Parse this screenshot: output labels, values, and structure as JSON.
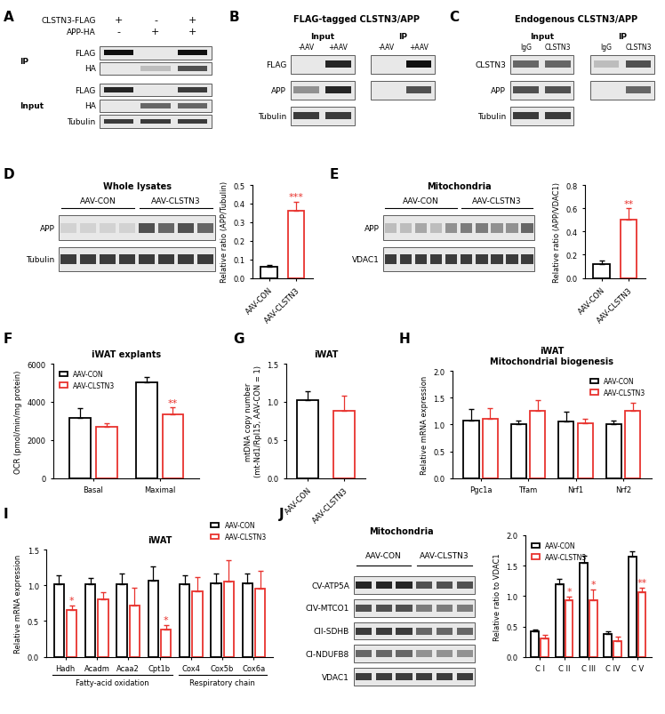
{
  "blots": [
    {
      "panel": "A",
      "type": "blot",
      "header_rows": [
        {
          "label": "CLSTN3-FLAG",
          "marks": [
            "+",
            "-",
            "+"
          ]
        },
        {
          "label": "APP-HA",
          "marks": [
            "-",
            "+",
            "+"
          ]
        }
      ],
      "sections": [
        {
          "label": "IP",
          "rows": [
            {
              "label": "FLAG",
              "bands": [
                1.0,
                0.0,
                1.0
              ]
            },
            {
              "label": "HA",
              "bands": [
                0.0,
                0.2,
                0.7
              ]
            }
          ]
        },
        {
          "label": "Input",
          "rows": [
            {
              "label": "FLAG",
              "bands": [
                0.9,
                0.0,
                0.8
              ]
            },
            {
              "label": "HA",
              "bands": [
                0.0,
                0.6,
                0.6
              ]
            },
            {
              "label": "Tubulin",
              "bands": [
                0.8,
                0.8,
                0.8
              ]
            }
          ]
        }
      ]
    },
    {
      "panel": "B",
      "type": "blot",
      "title": "FLAG-tagged CLSTN3/APP",
      "columns": [
        {
          "label": "Input",
          "lanes": [
            "-AAV",
            "+AAV"
          ],
          "rows": [
            {
              "label": "FLAG",
              "bands": [
                0.0,
                0.9
              ]
            },
            {
              "label": "APP",
              "bands": [
                0.4,
                0.9
              ]
            },
            {
              "label": "Tubulin",
              "bands": [
                0.8,
                0.8
              ]
            }
          ]
        },
        {
          "label": "IP",
          "lanes": [
            "-AAV",
            "+AAV"
          ],
          "rows": [
            {
              "bands": [
                0.0,
                1.0
              ]
            },
            {
              "bands": [
                0.0,
                0.7
              ]
            }
          ]
        }
      ]
    },
    {
      "panel": "C",
      "type": "blot",
      "title": "Endogenous CLSTN3/APP",
      "columns": [
        {
          "label": "Input",
          "lanes": [
            "IgG",
            "CLSTN3"
          ],
          "rows": [
            {
              "label": "CLSTN3",
              "bands": [
                0.6,
                0.6
              ]
            },
            {
              "label": "APP",
              "bands": [
                0.7,
                0.7
              ]
            },
            {
              "label": "Tubulin",
              "bands": [
                0.8,
                0.8
              ]
            }
          ]
        },
        {
          "label": "IP",
          "lanes": [
            "IgG",
            "CLSTN3"
          ],
          "rows": [
            {
              "bands": [
                0.2,
                0.7
              ]
            },
            {
              "bands": [
                0.0,
                0.6
              ]
            }
          ]
        }
      ]
    },
    {
      "panel": "D",
      "type": "blot",
      "title": "Whole lysates",
      "groups": [
        {
          "label": "AAV-CON",
          "lanes": 4
        },
        {
          "label": "AAV-CLSTN3",
          "lanes": 4
        }
      ],
      "rows": [
        {
          "label": "APP",
          "bands": [
            0.1,
            0.1,
            0.1,
            0.1,
            0.7,
            0.6,
            0.7,
            0.6
          ]
        },
        {
          "label": "Tubulin",
          "bands": [
            0.8,
            0.8,
            0.8,
            0.8,
            0.8,
            0.8,
            0.8,
            0.8
          ]
        }
      ]
    },
    {
      "panel": "E",
      "type": "blot",
      "title": "Mitochondria",
      "groups": [
        {
          "label": "AAV-CON",
          "lanes": 5
        },
        {
          "label": "AAV-CLSTN3",
          "lanes": 5
        }
      ],
      "rows": [
        {
          "label": "APP",
          "bands": [
            0.2,
            0.2,
            0.3,
            0.2,
            0.4,
            0.5,
            0.5,
            0.4,
            0.4,
            0.6
          ]
        },
        {
          "label": "VDAC1",
          "bands": [
            0.8,
            0.8,
            0.8,
            0.8,
            0.8,
            0.8,
            0.8,
            0.8,
            0.8,
            0.8
          ]
        }
      ]
    },
    {
      "panel": "J",
      "type": "blot",
      "title": "Mitochondria",
      "groups": [
        {
          "label": "AAV-CON",
          "lanes": 3
        },
        {
          "label": "AAV-CLSTN3",
          "lanes": 3
        }
      ],
      "rows": [
        {
          "label": "CV-ATP5A",
          "bands": [
            0.9,
            0.9,
            0.9,
            0.7,
            0.7,
            0.7
          ]
        },
        {
          "label": "CIV-MTCO1",
          "bands": [
            0.7,
            0.7,
            0.7,
            0.5,
            0.5,
            0.5
          ]
        },
        {
          "label": "CII-SDHB",
          "bands": [
            0.8,
            0.8,
            0.8,
            0.6,
            0.6,
            0.6
          ]
        },
        {
          "label": "CI-NDUFB8",
          "bands": [
            0.6,
            0.6,
            0.6,
            0.4,
            0.4,
            0.4
          ]
        },
        {
          "label": "VDAC1",
          "bands": [
            0.8,
            0.8,
            0.8,
            0.8,
            0.8,
            0.8
          ]
        }
      ]
    }
  ],
  "chart_data": [
    {
      "panel": "D",
      "type": "bar",
      "ylabel": "Relative ratio (APP/Tubulin)",
      "categories": [
        "AAV-CON",
        "AAV-CLSTN3"
      ],
      "values": [
        0.06,
        0.36
      ],
      "errors": [
        0.01,
        0.05
      ],
      "colors": [
        "#000000",
        "#e8332e"
      ],
      "significance": [
        null,
        "***"
      ],
      "ylim": [
        0,
        0.5
      ],
      "yticks": [
        {
          "value": 0,
          "label": "0.0"
        },
        0.1,
        0.2,
        0.3,
        0.4,
        0.5
      ],
      "grid": false
    },
    {
      "panel": "E",
      "type": "bar",
      "ylabel": "Relative ratio (APP/VDAC1)",
      "categories": [
        "AAV-CON",
        "AAV-CLSTN3"
      ],
      "values": [
        0.12,
        0.5
      ],
      "errors": [
        0.03,
        0.1
      ],
      "colors": [
        "#000000",
        "#e8332e"
      ],
      "significance": [
        null,
        "**"
      ],
      "ylim": [
        0,
        0.8
      ],
      "yticks": [
        {
          "value": 0,
          "label": "0.0"
        },
        0.2,
        0.4,
        0.6,
        0.8
      ],
      "grid": false
    },
    {
      "panel": "F",
      "type": "bar",
      "title": "iWAT explants",
      "ylabel": "OCR (pmol/min/mg protein)",
      "categories": [
        "Basal",
        "Maximal"
      ],
      "series": [
        {
          "name": "AAV-CON",
          "color": "#000000",
          "values": [
            3150,
            5000
          ],
          "errors": [
            500,
            300
          ],
          "significance": [
            null,
            null
          ]
        },
        {
          "name": "AAV-CLSTN3",
          "color": "#e8332e",
          "values": [
            2700,
            3350
          ],
          "errors": [
            200,
            350
          ],
          "significance": [
            null,
            "**"
          ]
        }
      ],
      "ylim": [
        0,
        6000
      ],
      "yticks": [
        0,
        2000,
        4000,
        6000
      ],
      "legend": "upper left",
      "grid": false
    },
    {
      "panel": "G",
      "type": "bar",
      "title": "iWAT",
      "ylabel": "mtDNA copy number\n(mt-Nd1/Rpl15, AAV-CON = 1)",
      "categories": [
        "AAV-CON",
        "AAV-CLSTN3"
      ],
      "values": [
        1.02,
        0.88
      ],
      "errors": [
        0.12,
        0.2
      ],
      "colors": [
        "#000000",
        "#e8332e"
      ],
      "ylim": [
        0,
        1.5
      ],
      "yticks": [
        {
          "value": 0,
          "label": "0.0"
        },
        0.5,
        {
          "value": 1,
          "label": "1.0"
        },
        1.5
      ],
      "grid": false
    },
    {
      "panel": "H",
      "type": "bar",
      "title": "iWAT\nMitochondrial biogenesis",
      "ylabel": "Relative mRNA expression",
      "categories": [
        "Pgc1a",
        "Tfam",
        "Nrf1",
        "Nrf2"
      ],
      "series": [
        {
          "name": "AAV-CON",
          "color": "#000000",
          "values": [
            1.08,
            1.0,
            1.06,
            1.0
          ],
          "errors": [
            0.2,
            0.07,
            0.18,
            0.07
          ]
        },
        {
          "name": "AAV-CLSTN3",
          "color": "#e8332e",
          "values": [
            1.1,
            1.25,
            1.03,
            1.25
          ],
          "errors": [
            0.2,
            0.2,
            0.08,
            0.15
          ]
        }
      ],
      "ylim": [
        0,
        2.0
      ],
      "yticks": [
        {
          "value": 0,
          "label": "0.0"
        },
        0.5,
        {
          "value": 1,
          "label": "1.0"
        },
        1.5,
        {
          "value": 2,
          "label": "2.0"
        }
      ],
      "legend": "upper right",
      "grid": false
    },
    {
      "panel": "I",
      "type": "bar",
      "title": "iWAT",
      "ylabel": "Relative mRNA expression",
      "categories": [
        "Hadh",
        "Acadm",
        "Acaa2",
        "Cpt1b",
        "Cox4",
        "Cox5b",
        "Cox6a"
      ],
      "groups": [
        {
          "label": "Fatty-acid oxidation",
          "members": [
            "Hadh",
            "Acadm",
            "Acaa2",
            "Cpt1b"
          ]
        },
        {
          "label": "Respiratory chain",
          "members": [
            "Cox4",
            "Cox5b",
            "Cox6a"
          ]
        }
      ],
      "series": [
        {
          "name": "AAV-CON",
          "color": "#000000",
          "values": [
            1.02,
            1.02,
            1.02,
            1.07,
            1.02,
            1.03,
            1.03
          ],
          "errors": [
            0.12,
            0.08,
            0.15,
            0.2,
            0.12,
            0.14,
            0.14
          ]
        },
        {
          "name": "AAV-CLSTN3",
          "color": "#e8332e",
          "values": [
            0.65,
            0.8,
            0.72,
            0.38,
            0.92,
            1.05,
            0.95
          ],
          "errors": [
            0.07,
            0.1,
            0.25,
            0.07,
            0.2,
            0.3,
            0.25
          ],
          "significance": [
            "*",
            null,
            null,
            "*",
            null,
            null,
            null
          ]
        }
      ],
      "ylim": [
        0,
        1.5
      ],
      "yticks": [
        {
          "value": 0,
          "label": "0.0"
        },
        0.5,
        {
          "value": 1,
          "label": "1.0"
        },
        1.5
      ],
      "legend": "upper right",
      "grid": false
    },
    {
      "panel": "J",
      "type": "bar",
      "ylabel": "Relative ratio to VDAC1",
      "categories": [
        "C I",
        "C II",
        "C III",
        "C IV",
        "C V"
      ],
      "series": [
        {
          "name": "AAV-CON",
          "color": "#000000",
          "values": [
            0.42,
            1.2,
            1.55,
            0.38,
            1.65
          ],
          "errors": [
            0.03,
            0.08,
            0.12,
            0.04,
            0.08
          ]
        },
        {
          "name": "AAV-CLSTN3",
          "color": "#e8332e",
          "values": [
            0.3,
            0.93,
            0.93,
            0.26,
            1.07
          ],
          "errors": [
            0.06,
            0.06,
            0.18,
            0.07,
            0.07
          ],
          "significance": [
            null,
            "*",
            "*",
            null,
            "**"
          ]
        }
      ],
      "ylim": [
        0,
        2.0
      ],
      "yticks": [
        {
          "value": 0,
          "label": "0.0"
        },
        0.5,
        {
          "value": 1,
          "label": "1.0"
        },
        1.5,
        {
          "value": 2,
          "label": "2.0"
        }
      ],
      "legend": "upper left",
      "grid": false
    }
  ]
}
